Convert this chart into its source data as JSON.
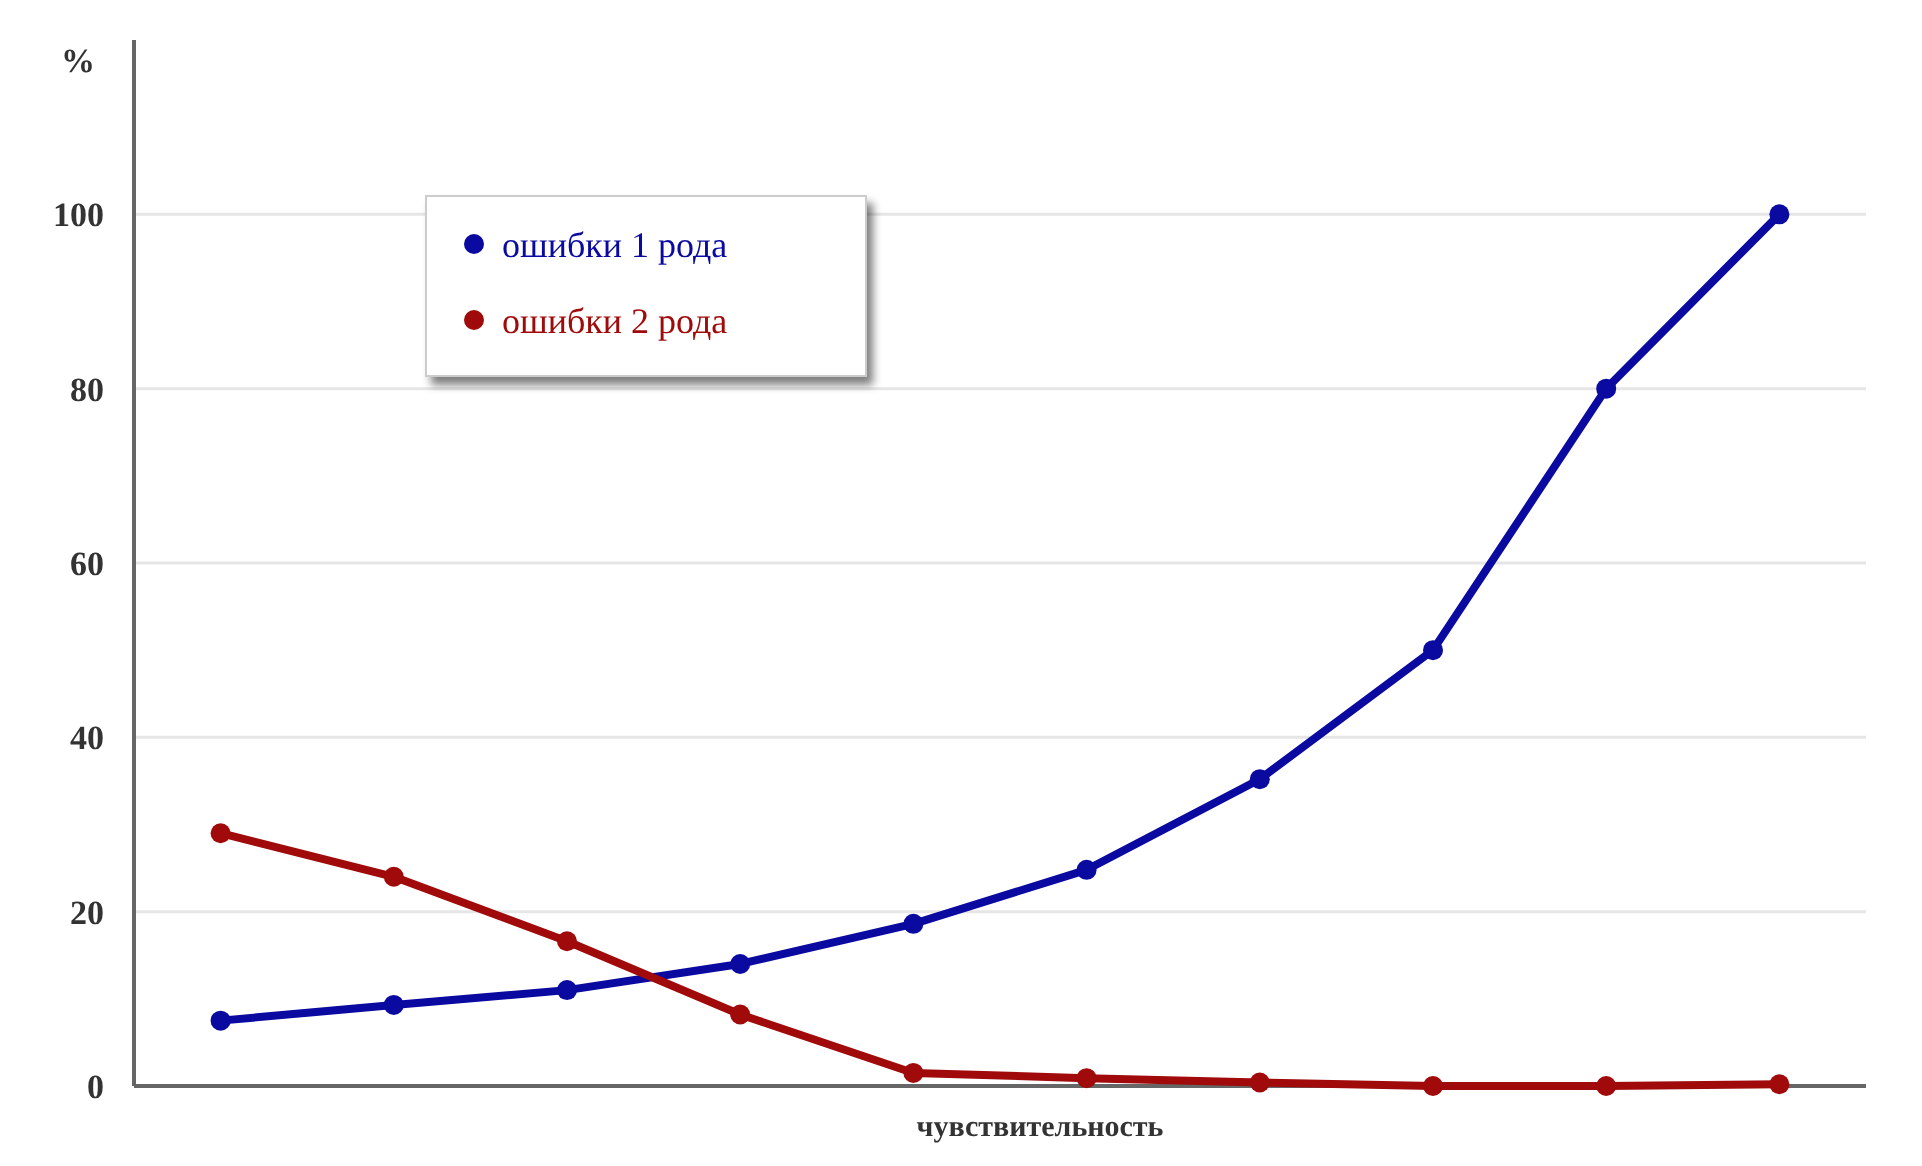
{
  "chart_data": {
    "type": "line",
    "ylabel": "%",
    "xlabel": "чувствительность",
    "categories": [
      null,
      null,
      null,
      null,
      null,
      null,
      null,
      null,
      null,
      null
    ],
    "series": [
      {
        "name": "ошибки 1 рода",
        "color": "#0a0aa0",
        "values": [
          7.5,
          9.3,
          11,
          14,
          18.6,
          24.8,
          35.2,
          50,
          80,
          100
        ]
      },
      {
        "name": "ошибки 2 рода",
        "color": "#a00a0a",
        "values": [
          29,
          24,
          16.6,
          8.2,
          1.5,
          0.9,
          0.4,
          0,
          0,
          0.2
        ]
      }
    ],
    "ylim": [
      0,
      120
    ],
    "yticks": [
      0,
      20,
      40,
      60,
      80,
      100
    ],
    "grid": "y",
    "legend": "top left",
    "marker": "circle",
    "line_style": "solid"
  }
}
